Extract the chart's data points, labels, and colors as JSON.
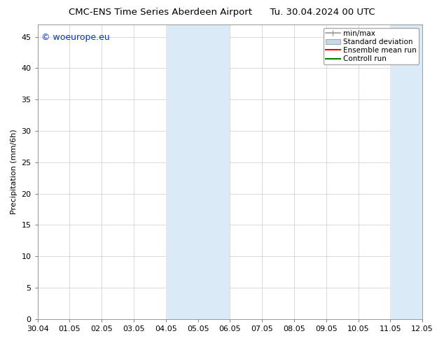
{
  "title_left": "CMC-ENS Time Series Aberdeen Airport",
  "title_right": "Tu. 30.04.2024 00 UTC",
  "ylabel": "Precipitation (mm/6h)",
  "watermark": "© woeurope.eu",
  "x_ticks": [
    "30.04",
    "01.05",
    "02.05",
    "03.05",
    "04.05",
    "05.05",
    "06.05",
    "07.05",
    "08.05",
    "09.05",
    "10.05",
    "11.05",
    "12.05"
  ],
  "x_tick_vals": [
    0,
    1,
    2,
    3,
    4,
    5,
    6,
    7,
    8,
    9,
    10,
    11,
    12
  ],
  "ylim": [
    0,
    47
  ],
  "y_ticks": [
    0,
    5,
    10,
    15,
    20,
    25,
    30,
    35,
    40,
    45
  ],
  "shaded_regions": [
    {
      "x_start": 4,
      "x_end": 6,
      "color": "#daeaf7"
    },
    {
      "x_start": 11,
      "x_end": 12,
      "color": "#daeaf7"
    }
  ],
  "legend_labels": [
    "min/max",
    "Standard deviation",
    "Ensemble mean run",
    "Controll run"
  ],
  "legend_colors": [
    "#999999",
    "#c5d8ea",
    "red",
    "green"
  ],
  "background_color": "#ffffff",
  "plot_bg_color": "#ffffff",
  "grid_color": "#cccccc",
  "title_fontsize": 9.5,
  "tick_fontsize": 8,
  "ylabel_fontsize": 8,
  "watermark_color": "#0033cc",
  "watermark_fontsize": 9,
  "legend_fontsize": 7.5
}
